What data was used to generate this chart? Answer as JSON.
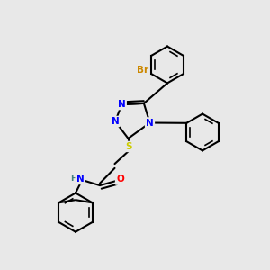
{
  "bg_color": "#e8e8e8",
  "atom_colors": {
    "N": "#0000ff",
    "O": "#ff0000",
    "S": "#cccc00",
    "Br": "#cc8800",
    "H": "#408080",
    "C": "#000000"
  }
}
